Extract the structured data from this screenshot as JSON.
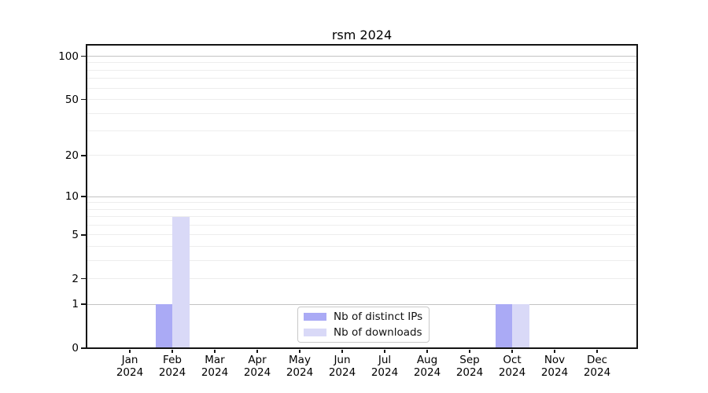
{
  "chart_data": {
    "type": "bar",
    "title": "rsm 2024",
    "categories": [
      "Jan 2024",
      "Feb 2024",
      "Mar 2024",
      "Apr 2024",
      "May 2024",
      "Jun 2024",
      "Jul 2024",
      "Aug 2024",
      "Sep 2024",
      "Oct 2024",
      "Nov 2024",
      "Dec 2024"
    ],
    "series": [
      {
        "name": "Nb of distinct IPs",
        "color": "#aaaaf5",
        "values": [
          0,
          1,
          0,
          0,
          0,
          0,
          0,
          0,
          0,
          1,
          0,
          0
        ]
      },
      {
        "name": "Nb of downloads",
        "color": "#d9d9f7",
        "values": [
          0,
          7,
          0,
          0,
          0,
          0,
          0,
          0,
          0,
          1,
          0,
          0
        ]
      }
    ],
    "y_axis": {
      "scale": "log10(1+y)",
      "ticks": [
        0,
        1,
        2,
        5,
        10,
        20,
        50,
        100
      ],
      "major_gridlines": [
        1,
        10,
        100
      ],
      "minor_gridlines": [
        2,
        3,
        4,
        5,
        6,
        7,
        8,
        9,
        20,
        30,
        40,
        50,
        60,
        70,
        80,
        90
      ],
      "max": 120
    },
    "x_axis": {
      "label_lines": 2
    },
    "legend": {
      "position": "lower center"
    },
    "grid": true,
    "colors": {
      "major_grid": "#c3c3c3",
      "minor_grid": "#ededed",
      "spine": "#141414",
      "background": "#ffffff"
    }
  }
}
